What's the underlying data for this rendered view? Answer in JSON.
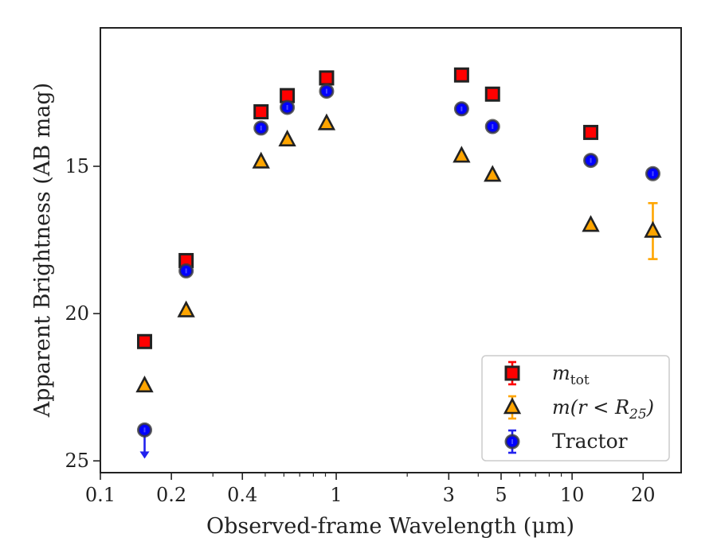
{
  "chart_data": {
    "type": "scatter",
    "xlabel": "Observed-frame Wavelength (μm)",
    "ylabel": "Apparent Brightness (AB mag)",
    "xscale": "log",
    "xlim": [
      0.1,
      29
    ],
    "ylim": [
      25.4,
      10.3
    ],
    "y_inverted": true,
    "xticks": [
      {
        "value": 0.1,
        "label": "0.1"
      },
      {
        "value": 0.2,
        "label": "0.2"
      },
      {
        "value": 0.4,
        "label": "0.4"
      },
      {
        "value": 1,
        "label": "1"
      },
      {
        "value": 3,
        "label": "3"
      },
      {
        "value": 5,
        "label": "5"
      },
      {
        "value": 10,
        "label": "10"
      },
      {
        "value": 20,
        "label": "20"
      }
    ],
    "yticks": [
      {
        "value": 15,
        "label": "15"
      },
      {
        "value": 20,
        "label": "20"
      },
      {
        "value": 25,
        "label": "25"
      }
    ],
    "legend_position": "lower-right",
    "series": [
      {
        "name": "m_tot",
        "legend": {
          "base": "m",
          "sub": "tot",
          "suffix": ""
        },
        "marker": "square",
        "color": "#ff0000",
        "points": [
          {
            "x": 0.154,
            "y": 20.95
          },
          {
            "x": 0.231,
            "y": 18.2
          },
          {
            "x": 0.48,
            "y": 13.15
          },
          {
            "x": 0.62,
            "y": 12.6
          },
          {
            "x": 0.91,
            "y": 12.0
          },
          {
            "x": 3.4,
            "y": 11.9
          },
          {
            "x": 4.6,
            "y": 12.55
          },
          {
            "x": 12.0,
            "y": 13.85
          }
        ]
      },
      {
        "name": "m(r < R25)",
        "legend": {
          "base": "m(r < R",
          "sub": "25",
          "suffix": ")"
        },
        "marker": "triangle",
        "color": "#ffa500",
        "points": [
          {
            "x": 0.154,
            "y": 22.45
          },
          {
            "x": 0.231,
            "y": 19.9
          },
          {
            "x": 0.48,
            "y": 14.85
          },
          {
            "x": 0.62,
            "y": 14.1
          },
          {
            "x": 0.91,
            "y": 13.55
          },
          {
            "x": 3.4,
            "y": 14.65
          },
          {
            "x": 4.6,
            "y": 15.3
          },
          {
            "x": 12.0,
            "y": 17.0
          },
          {
            "x": 22.0,
            "y": 17.2,
            "err": 0.95
          }
        ]
      },
      {
        "name": "Tractor",
        "legend": {
          "base": "Tractor",
          "sub": "",
          "suffix": ""
        },
        "marker": "circle",
        "color": "#0000ff",
        "points": [
          {
            "x": 0.154,
            "y": 23.95,
            "upper_limit": true
          },
          {
            "x": 0.231,
            "y": 18.55
          },
          {
            "x": 0.48,
            "y": 13.7
          },
          {
            "x": 0.62,
            "y": 13.0
          },
          {
            "x": 0.91,
            "y": 12.45
          },
          {
            "x": 3.4,
            "y": 13.05
          },
          {
            "x": 4.6,
            "y": 13.65
          },
          {
            "x": 12.0,
            "y": 14.8
          },
          {
            "x": 22.0,
            "y": 15.25
          }
        ]
      }
    ]
  }
}
